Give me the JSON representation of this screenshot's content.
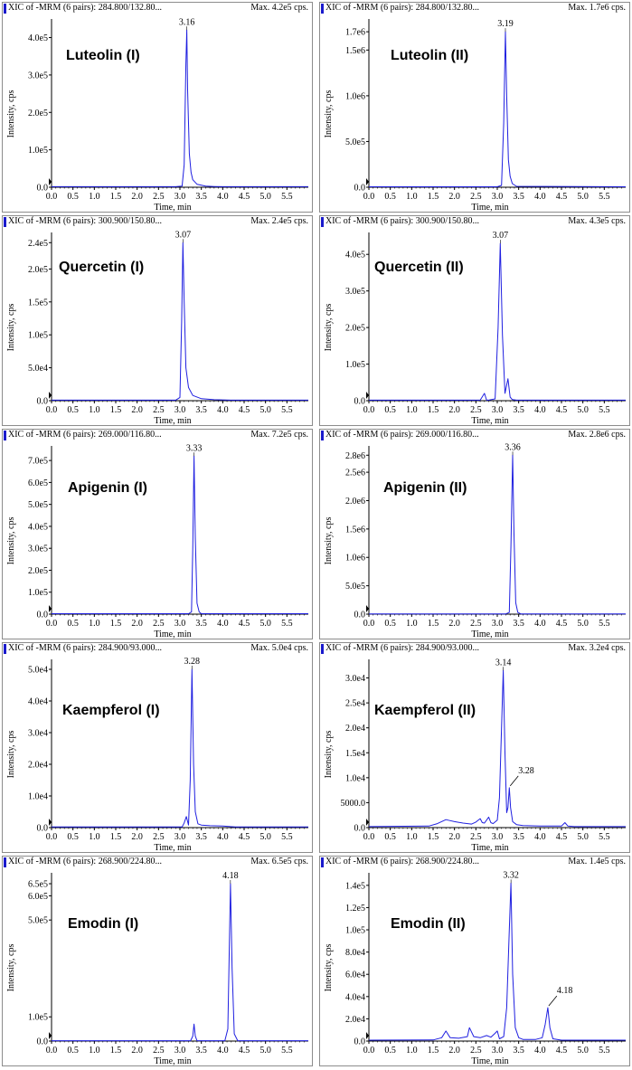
{
  "figure": {
    "panels": [
      {
        "header_left": "XIC of -MRM (6 pairs): 284.800/132.80...",
        "header_right": "Max. 4.2e5 cps.",
        "compound": "Luteolin (I)",
        "ylabel": "Intensity, cps",
        "xlabel": "Time, min"
      },
      {
        "header_left": "XIC of -MRM (6 pairs): 284.800/132.80...",
        "header_right": "Max. 1.7e6 cps.",
        "compound": "Luteolin (II)",
        "ylabel": "Intensity, cps",
        "xlabel": "Time, min"
      },
      {
        "header_left": "XIC of -MRM (6 pairs): 300.900/150.80...",
        "header_right": "Max. 2.4e5 cps.",
        "compound": "Quercetin (I)",
        "ylabel": "Intensity, cps",
        "xlabel": "Time, min"
      },
      {
        "header_left": "XIC of -MRM (6 pairs): 300.900/150.80...",
        "header_right": "Max. 4.3e5 cps.",
        "compound": "Quercetin (II)",
        "ylabel": "Intensity, cps",
        "xlabel": "Time, min"
      },
      {
        "header_left": "XIC of -MRM (6 pairs): 269.000/116.80...",
        "header_right": "Max. 7.2e5 cps.",
        "compound": "Apigenin (I)",
        "ylabel": "Intensity, cps",
        "xlabel": "Time, min"
      },
      {
        "header_left": "XIC of -MRM (6 pairs): 269.000/116.80...",
        "header_right": "Max. 2.8e6 cps.",
        "compound": "Apigenin (II)",
        "ylabel": "Intensity, cps",
        "xlabel": "Time, min"
      },
      {
        "header_left": "XIC of -MRM (6 pairs): 284.900/93.000...",
        "header_right": "Max. 5.0e4 cps.",
        "compound": "Kaempferol (I)",
        "ylabel": "Intensity, cps",
        "xlabel": "Time, min"
      },
      {
        "header_left": "XIC of -MRM (6 pairs): 284.900/93.000...",
        "header_right": "Max. 3.2e4 cps.",
        "compound": "Kaempferol (II)",
        "ylabel": "Intensity, cps",
        "xlabel": "Time, min"
      },
      {
        "header_left": "XIC of -MRM (6 pairs): 268.900/224.80...",
        "header_right": "Max. 6.5e5 cps.",
        "compound": "Emodin (I)",
        "ylabel": "Intensity, cps",
        "xlabel": "Time, min"
      },
      {
        "header_left": "XIC of -MRM (6 pairs): 268.900/224.80...",
        "header_right": "Max. 1.4e5 cps.",
        "compound": "Emodin (II)",
        "ylabel": "Intensity, cps",
        "xlabel": "Time, min"
      }
    ]
  },
  "chart_data": [
    {
      "type": "line",
      "title": "Luteolin (I)",
      "xlabel": "Time, min",
      "ylabel": "Intensity, cps",
      "xlim": [
        0,
        6.0
      ],
      "ylim": [
        0,
        440000
      ],
      "xticks": [
        "0.0",
        "0.5",
        "1.0",
        "1.5",
        "2.0",
        "2.5",
        "3.0",
        "3.5",
        "4.0",
        "4.5",
        "5.0",
        "5.5"
      ],
      "yticks": [
        {
          "v": 0,
          "label": "0.0"
        },
        {
          "v": 100000,
          "label": "1.0e5"
        },
        {
          "v": 200000,
          "label": "2.0e5"
        },
        {
          "v": 300000,
          "label": "3.0e5"
        },
        {
          "v": 400000,
          "label": "4.0e5"
        }
      ],
      "x": [
        0,
        2.9,
        3.05,
        3.1,
        3.14,
        3.16,
        3.18,
        3.22,
        3.26,
        3.3,
        3.4,
        3.6,
        3.8,
        4.0,
        6.0
      ],
      "y": [
        1500,
        1500,
        3000,
        60000,
        330000,
        420000,
        260000,
        90000,
        40000,
        20000,
        8000,
        3000,
        2000,
        1500,
        1500
      ],
      "peaks": [
        {
          "x": 3.16,
          "y": 420000,
          "label": "3.16"
        }
      ],
      "color": "#1f1fe0"
    },
    {
      "type": "line",
      "title": "Luteolin (II)",
      "xlabel": "Time, min",
      "ylabel": "Intensity, cps",
      "xlim": [
        0,
        6.0
      ],
      "ylim": [
        0,
        1800000
      ],
      "xticks": [
        "0.0",
        "0.5",
        "1.0",
        "1.5",
        "2.0",
        "2.5",
        "3.0",
        "3.5",
        "4.0",
        "4.5",
        "5.0",
        "5.5"
      ],
      "yticks": [
        {
          "v": 0,
          "label": "0.0"
        },
        {
          "v": 500000,
          "label": "5.0e5"
        },
        {
          "v": 1000000,
          "label": "1.0e6"
        },
        {
          "v": 1500000,
          "label": "1.5e6"
        },
        {
          "v": 1700000,
          "label": "1.7e6"
        }
      ],
      "x": [
        0,
        3.0,
        3.1,
        3.15,
        3.19,
        3.22,
        3.26,
        3.3,
        3.35,
        3.45,
        6.0
      ],
      "y": [
        5000,
        5000,
        20000,
        700000,
        1700000,
        1000000,
        300000,
        120000,
        40000,
        10000,
        5000
      ],
      "peaks": [
        {
          "x": 3.19,
          "y": 1700000,
          "label": "3.19"
        }
      ],
      "color": "#1f1fe0"
    },
    {
      "type": "line",
      "title": "Quercetin (I)",
      "xlabel": "Time, min",
      "ylabel": "Intensity, cps",
      "xlim": [
        0,
        6.0
      ],
      "ylim": [
        0,
        250000
      ],
      "xticks": [
        "0.0",
        "0.5",
        "1.0",
        "1.5",
        "2.0",
        "2.5",
        "3.0",
        "3.5",
        "4.0",
        "4.5",
        "5.0",
        "5.5"
      ],
      "yticks": [
        {
          "v": 0,
          "label": "0.0"
        },
        {
          "v": 50000,
          "label": "5.0e4"
        },
        {
          "v": 100000,
          "label": "1.0e5"
        },
        {
          "v": 150000,
          "label": "1.5e5"
        },
        {
          "v": 200000,
          "label": "2.0e5"
        },
        {
          "v": 240000,
          "label": "2.4e5"
        }
      ],
      "x": [
        0,
        2.9,
        3.0,
        3.04,
        3.07,
        3.1,
        3.14,
        3.2,
        3.3,
        3.5,
        3.8,
        4.2,
        6.0
      ],
      "y": [
        800,
        800,
        5000,
        120000,
        240000,
        150000,
        50000,
        20000,
        8000,
        3000,
        1500,
        800,
        800
      ],
      "peaks": [
        {
          "x": 3.07,
          "y": 240000,
          "label": "3.07"
        }
      ],
      "color": "#1f1fe0"
    },
    {
      "type": "line",
      "title": "Quercetin (II)",
      "xlabel": "Time, min",
      "ylabel": "Intensity, cps",
      "xlim": [
        0,
        6.0
      ],
      "ylim": [
        0,
        450000
      ],
      "xticks": [
        "0.0",
        "0.5",
        "1.0",
        "1.5",
        "2.0",
        "2.5",
        "3.0",
        "3.5",
        "4.0",
        "4.5",
        "5.0",
        "5.5"
      ],
      "yticks": [
        {
          "v": 0,
          "label": "0.0"
        },
        {
          "v": 100000,
          "label": "1.0e5"
        },
        {
          "v": 200000,
          "label": "2.0e5"
        },
        {
          "v": 300000,
          "label": "3.0e5"
        },
        {
          "v": 400000,
          "label": "4.0e5"
        }
      ],
      "x": [
        0,
        2.6,
        2.7,
        2.75,
        2.8,
        2.95,
        3.02,
        3.07,
        3.12,
        3.18,
        3.25,
        3.3,
        3.35,
        3.45,
        6.0
      ],
      "y": [
        1500,
        1500,
        20000,
        1500,
        1500,
        5000,
        200000,
        430000,
        180000,
        20000,
        60000,
        10000,
        3000,
        1500,
        1500
      ],
      "peaks": [
        {
          "x": 3.07,
          "y": 430000,
          "label": "3.07"
        }
      ],
      "color": "#1f1fe0"
    },
    {
      "type": "line",
      "title": "Apigenin (I)",
      "xlabel": "Time, min",
      "ylabel": "Intensity, cps",
      "xlim": [
        0,
        6.0
      ],
      "ylim": [
        0,
        750000
      ],
      "xticks": [
        "0.0",
        "0.5",
        "1.0",
        "1.5",
        "2.0",
        "2.5",
        "3.0",
        "3.5",
        "4.0",
        "4.5",
        "5.0",
        "5.5"
      ],
      "yticks": [
        {
          "v": 0,
          "label": "0.0"
        },
        {
          "v": 100000,
          "label": "1.0e5"
        },
        {
          "v": 200000,
          "label": "2.0e5"
        },
        {
          "v": 300000,
          "label": "3.0e5"
        },
        {
          "v": 400000,
          "label": "4.0e5"
        },
        {
          "v": 500000,
          "label": "5.0e5"
        },
        {
          "v": 600000,
          "label": "6.0e5"
        },
        {
          "v": 700000,
          "label": "7.0e5"
        }
      ],
      "x": [
        0,
        3.2,
        3.27,
        3.3,
        3.33,
        3.36,
        3.4,
        3.45,
        3.5,
        6.0
      ],
      "y": [
        2000,
        2000,
        10000,
        300000,
        720000,
        350000,
        50000,
        10000,
        2000,
        2000
      ],
      "peaks": [
        {
          "x": 3.33,
          "y": 720000,
          "label": "3.33"
        }
      ],
      "color": "#1f1fe0"
    },
    {
      "type": "line",
      "title": "Apigenin (II)",
      "xlabel": "Time, min",
      "ylabel": "Intensity, cps",
      "xlim": [
        0,
        6.0
      ],
      "ylim": [
        0,
        2900000
      ],
      "xticks": [
        "0.0",
        "0.5",
        "1.0",
        "1.5",
        "2.0",
        "2.5",
        "3.0",
        "3.5",
        "4.0",
        "4.5",
        "5.0",
        "5.5"
      ],
      "yticks": [
        {
          "v": 0,
          "label": "0.0"
        },
        {
          "v": 500000,
          "label": "5.0e5"
        },
        {
          "v": 1000000,
          "label": "1.0e6"
        },
        {
          "v": 1500000,
          "label": "1.5e6"
        },
        {
          "v": 2000000,
          "label": "2.0e6"
        },
        {
          "v": 2500000,
          "label": "2.5e6"
        },
        {
          "v": 2800000,
          "label": "2.8e6"
        }
      ],
      "x": [
        0,
        3.2,
        3.28,
        3.32,
        3.36,
        3.39,
        3.43,
        3.48,
        3.55,
        6.0
      ],
      "y": [
        5000,
        5000,
        30000,
        1200000,
        2800000,
        1400000,
        200000,
        30000,
        5000,
        5000
      ],
      "peaks": [
        {
          "x": 3.36,
          "y": 2800000,
          "label": "3.36"
        }
      ],
      "color": "#1f1fe0"
    },
    {
      "type": "line",
      "title": "Kaempferol (I)",
      "xlabel": "Time, min",
      "ylabel": "Intensity, cps",
      "xlim": [
        0,
        6.0
      ],
      "ylim": [
        0,
        52000
      ],
      "xticks": [
        "0.0",
        "0.5",
        "1.0",
        "1.5",
        "2.0",
        "2.5",
        "3.0",
        "3.5",
        "4.0",
        "4.5",
        "5.0",
        "5.5"
      ],
      "yticks": [
        {
          "v": 0,
          "label": "0.0"
        },
        {
          "v": 10000,
          "label": "1.0e4"
        },
        {
          "v": 20000,
          "label": "2.0e4"
        },
        {
          "v": 30000,
          "label": "3.0e4"
        },
        {
          "v": 40000,
          "label": "4.0e4"
        },
        {
          "v": 50000,
          "label": "5.0e4"
        }
      ],
      "x": [
        0,
        3.05,
        3.1,
        3.15,
        3.2,
        3.24,
        3.28,
        3.32,
        3.36,
        3.42,
        3.5,
        3.7,
        4.0,
        4.3,
        6.0
      ],
      "y": [
        200,
        200,
        1500,
        3500,
        800,
        15000,
        50000,
        20000,
        5000,
        1200,
        800,
        600,
        500,
        200,
        200
      ],
      "peaks": [
        {
          "x": 3.28,
          "y": 50000,
          "label": "3.28"
        }
      ],
      "color": "#1f1fe0"
    },
    {
      "type": "line",
      "title": "Kaempferol (II)",
      "xlabel": "Time, min",
      "ylabel": "Intensity, cps",
      "xlim": [
        0,
        6.0
      ],
      "ylim": [
        0,
        33000
      ],
      "xticks": [
        "0.0",
        "0.5",
        "1.0",
        "1.5",
        "2.0",
        "2.5",
        "3.0",
        "3.5",
        "4.0",
        "4.5",
        "5.0",
        "5.5"
      ],
      "yticks": [
        {
          "v": 0,
          "label": "0.0"
        },
        {
          "v": 5000,
          "label": "5000.0"
        },
        {
          "v": 10000,
          "label": "1.0e4"
        },
        {
          "v": 15000,
          "label": "1.5e4"
        },
        {
          "v": 20000,
          "label": "2.0e4"
        },
        {
          "v": 25000,
          "label": "2.5e4"
        },
        {
          "v": 30000,
          "label": "3.0e4"
        }
      ],
      "x": [
        0,
        1.4,
        1.6,
        1.8,
        1.9,
        2.0,
        2.2,
        2.4,
        2.5,
        2.6,
        2.65,
        2.7,
        2.8,
        2.85,
        2.9,
        3.0,
        3.05,
        3.1,
        3.14,
        3.18,
        3.22,
        3.25,
        3.28,
        3.31,
        3.36,
        3.45,
        3.6,
        4.0,
        4.5,
        4.58,
        4.65,
        4.8,
        6.0
      ],
      "y": [
        200,
        300,
        800,
        1600,
        1400,
        1200,
        900,
        700,
        1100,
        1800,
        1000,
        900,
        2100,
        1000,
        800,
        1500,
        6000,
        20000,
        31500,
        15000,
        3000,
        4000,
        8000,
        4000,
        1200,
        600,
        400,
        300,
        300,
        1000,
        300,
        200,
        200
      ],
      "peaks": [
        {
          "x": 3.14,
          "y": 31500,
          "label": "3.14"
        },
        {
          "x": 3.28,
          "y": 8000,
          "label": "3.28"
        }
      ],
      "color": "#1f1fe0"
    },
    {
      "type": "line",
      "title": "Emodin (I)",
      "xlabel": "Time, min",
      "ylabel": "Intensity, cps",
      "xlim": [
        0,
        6.0
      ],
      "ylim": [
        0,
        680000
      ],
      "xticks": [
        "0.0",
        "0.5",
        "1.0",
        "1.5",
        "2.0",
        "2.5",
        "3.0",
        "3.5",
        "4.0",
        "4.5",
        "5.0",
        "5.5"
      ],
      "yticks": [
        {
          "v": 0,
          "label": "0.0"
        },
        {
          "v": 100000,
          "label": "1.0e5"
        },
        {
          "v": 500000,
          "label": "5.0e5"
        },
        {
          "v": 600000,
          "label": "6.0e5"
        },
        {
          "v": 650000,
          "label": "6.5e5"
        }
      ],
      "x": [
        0,
        3.25,
        3.3,
        3.33,
        3.36,
        3.4,
        4.05,
        4.12,
        4.18,
        4.22,
        4.27,
        4.35,
        6.0
      ],
      "y": [
        1500,
        1500,
        20000,
        70000,
        20000,
        1500,
        1500,
        50000,
        650000,
        300000,
        30000,
        1500,
        1500
      ],
      "peaks": [
        {
          "x": 4.18,
          "y": 650000,
          "label": "4.18"
        }
      ],
      "color": "#1f1fe0"
    },
    {
      "type": "line",
      "title": "Emodin (II)",
      "xlabel": "Time, min",
      "ylabel": "Intensity, cps",
      "xlim": [
        0,
        6.0
      ],
      "ylim": [
        0,
        148000
      ],
      "xticks": [
        "0.0",
        "0.5",
        "1.0",
        "1.5",
        "2.0",
        "2.5",
        "3.0",
        "3.5",
        "4.0",
        "4.5",
        "5.0",
        "5.5"
      ],
      "yticks": [
        {
          "v": 0,
          "label": "0.0"
        },
        {
          "v": 20000,
          "label": "2.0e4"
        },
        {
          "v": 40000,
          "label": "4.0e4"
        },
        {
          "v": 60000,
          "label": "6.0e4"
        },
        {
          "v": 80000,
          "label": "8.0e4"
        },
        {
          "v": 100000,
          "label": "1.0e5"
        },
        {
          "v": 120000,
          "label": "1.2e5"
        },
        {
          "v": 140000,
          "label": "1.4e5"
        }
      ],
      "x": [
        0,
        1.5,
        1.7,
        1.8,
        1.9,
        2.1,
        2.3,
        2.35,
        2.45,
        2.6,
        2.75,
        2.85,
        2.95,
        3.0,
        3.05,
        3.15,
        3.22,
        3.28,
        3.32,
        3.36,
        3.42,
        3.5,
        3.6,
        3.9,
        4.05,
        4.12,
        4.18,
        4.23,
        4.3,
        4.5,
        6.0
      ],
      "y": [
        800,
        1000,
        3000,
        9000,
        3000,
        2500,
        4000,
        12000,
        4000,
        3000,
        5000,
        3500,
        7000,
        9000,
        2000,
        4000,
        30000,
        100000,
        142000,
        60000,
        12000,
        3000,
        1500,
        1500,
        3000,
        15000,
        30000,
        12000,
        2000,
        800,
        800
      ],
      "peaks": [
        {
          "x": 3.32,
          "y": 142000,
          "label": "3.32"
        },
        {
          "x": 4.18,
          "y": 30000,
          "label": "4.18"
        }
      ],
      "color": "#1f1fe0"
    }
  ]
}
